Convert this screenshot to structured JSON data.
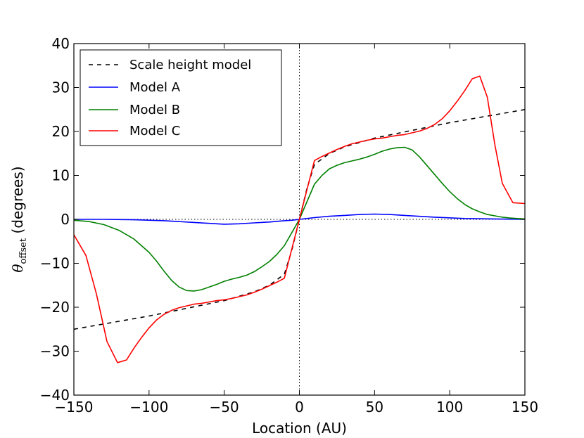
{
  "chart_data": {
    "type": "line",
    "title": "",
    "xlabel": "Location (AU)",
    "ylabel_main": "θ",
    "ylabel_sub": "offset",
    "ylabel_tail": " (degrees)",
    "xlim": [
      -150,
      150
    ],
    "ylim": [
      -40,
      40
    ],
    "xticks": [
      -150,
      -100,
      -50,
      0,
      50,
      100,
      150
    ],
    "yticks": [
      -40,
      -30,
      -20,
      -10,
      0,
      10,
      20,
      30,
      40
    ],
    "xtick_labels": [
      "−150",
      "−100",
      "−50",
      "0",
      "50",
      "100",
      "150"
    ],
    "ytick_labels": [
      "−40",
      "−30",
      "−20",
      "−10",
      "0",
      "10",
      "20",
      "30",
      "40"
    ],
    "legend_position": "top-left",
    "reference_lines": {
      "vertical_x": 0,
      "horizontal_y": 0,
      "style": "dotted",
      "color": "#000000"
    },
    "series": [
      {
        "name": "Scale height model",
        "color": "#000000",
        "dash": "dashed",
        "x": [
          -150,
          -100,
          -50,
          -30,
          -20,
          -10,
          -5,
          0,
          5,
          10,
          20,
          30,
          50,
          100,
          150
        ],
        "y": [
          -25,
          -22,
          -18.5,
          -16.5,
          -15,
          -12.5,
          -7,
          0,
          7,
          12.5,
          15,
          16.5,
          18.5,
          22,
          25
        ]
      },
      {
        "name": "Model A",
        "color": "#0000ff",
        "dash": "solid",
        "x": [
          -150,
          -130,
          -110,
          -90,
          -70,
          -50,
          -40,
          -30,
          -20,
          -10,
          -5,
          0,
          5,
          10,
          20,
          30,
          40,
          50,
          60,
          70,
          90,
          110,
          130,
          150
        ],
        "y": [
          0,
          0,
          -0.1,
          -0.3,
          -0.7,
          -1.1,
          -1.0,
          -0.8,
          -0.6,
          -0.3,
          -0.2,
          0,
          0.2,
          0.4,
          0.7,
          0.9,
          1.1,
          1.2,
          1.1,
          0.9,
          0.5,
          0.2,
          0.1,
          0
        ]
      },
      {
        "name": "Model B",
        "color": "#008000",
        "dash": "solid",
        "x": [
          -150,
          -140,
          -130,
          -120,
          -110,
          -100,
          -95,
          -90,
          -85,
          -80,
          -75,
          -70,
          -65,
          -60,
          -55,
          -50,
          -45,
          -40,
          -35,
          -30,
          -25,
          -20,
          -15,
          -10,
          -5,
          0,
          5,
          10,
          15,
          20,
          25,
          30,
          35,
          40,
          45,
          50,
          55,
          60,
          65,
          70,
          75,
          80,
          85,
          90,
          95,
          100,
          105,
          110,
          115,
          120,
          125,
          130,
          135,
          140,
          145,
          150
        ],
        "y": [
          -0.2,
          -0.5,
          -1.2,
          -2.5,
          -4.5,
          -7.5,
          -9.5,
          -11.8,
          -13.9,
          -15.4,
          -16.2,
          -16.3,
          -16.0,
          -15.4,
          -14.8,
          -14.1,
          -13.6,
          -13.2,
          -12.7,
          -11.9,
          -10.8,
          -9.6,
          -8.0,
          -6.0,
          -3.0,
          0,
          4,
          8,
          10,
          11.5,
          12.3,
          12.9,
          13.3,
          13.7,
          14.2,
          14.8,
          15.5,
          16.0,
          16.3,
          16.4,
          15.8,
          14.2,
          12.2,
          10.2,
          8.2,
          6.3,
          4.7,
          3.4,
          2.4,
          1.7,
          1.1,
          0.8,
          0.5,
          0.3,
          0.2,
          0.1
        ]
      },
      {
        "name": "Model C",
        "color": "#ff0000",
        "dash": "solid",
        "x": [
          -150,
          -142,
          -135,
          -128,
          -121,
          -115,
          -110,
          -105,
          -100,
          -95,
          -90,
          -85,
          -80,
          -75,
          -70,
          -65,
          -60,
          -55,
          -50,
          -45,
          -40,
          -35,
          -30,
          -25,
          -20,
          -15,
          -10,
          0,
          10,
          15,
          20,
          25,
          30,
          35,
          40,
          45,
          50,
          55,
          60,
          65,
          70,
          75,
          80,
          85,
          90,
          95,
          100,
          105,
          110,
          115,
          120,
          125,
          130,
          135,
          142,
          150
        ],
        "y": [
          -3.5,
          -8.2,
          -17,
          -27.8,
          -32.6,
          -32.0,
          -29.3,
          -26.9,
          -24.7,
          -22.9,
          -21.6,
          -20.7,
          -20.1,
          -19.7,
          -19.3,
          -19.1,
          -18.8,
          -18.5,
          -18.3,
          -18.0,
          -17.6,
          -17.2,
          -16.6,
          -15.9,
          -15.1,
          -14.3,
          -13.4,
          0,
          13.4,
          14.3,
          15.1,
          15.9,
          16.6,
          17.2,
          17.6,
          18.0,
          18.3,
          18.5,
          18.8,
          19.1,
          19.3,
          19.7,
          20.1,
          20.7,
          21.6,
          22.9,
          24.7,
          26.9,
          29.3,
          32.0,
          32.6,
          27.8,
          17,
          8.2,
          3.8,
          3.6
        ]
      }
    ]
  }
}
